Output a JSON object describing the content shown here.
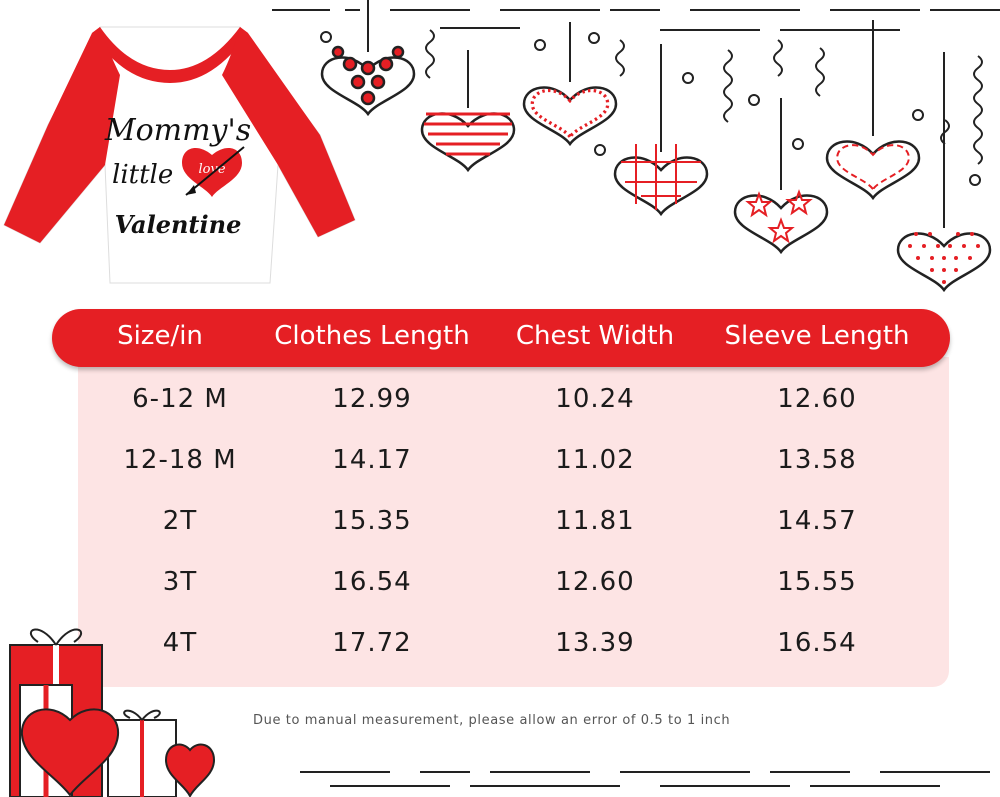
{
  "shirt": {
    "line1": "Mommy's",
    "line2": "little",
    "heart_word": "love",
    "line3": "Valentine"
  },
  "table": {
    "headers": [
      "Size/in",
      "Clothes Length",
      "Chest Width",
      "Sleeve Length"
    ],
    "rows": [
      [
        "6-12 M",
        "12.99",
        "10.24",
        "12.60"
      ],
      [
        "12-18 M",
        "14.17",
        "11.02",
        "13.58"
      ],
      [
        "2T",
        "15.35",
        "11.81",
        "14.57"
      ],
      [
        "3T",
        "16.54",
        "12.60",
        "15.55"
      ],
      [
        "4T",
        "17.72",
        "13.39",
        "16.54"
      ]
    ]
  },
  "note": "Due to manual measurement, please allow an error of 0.5 to 1 inch",
  "colors": {
    "accent": "#e51f24",
    "body_bg": "#fde4e4",
    "text": "#1b1b1b"
  }
}
